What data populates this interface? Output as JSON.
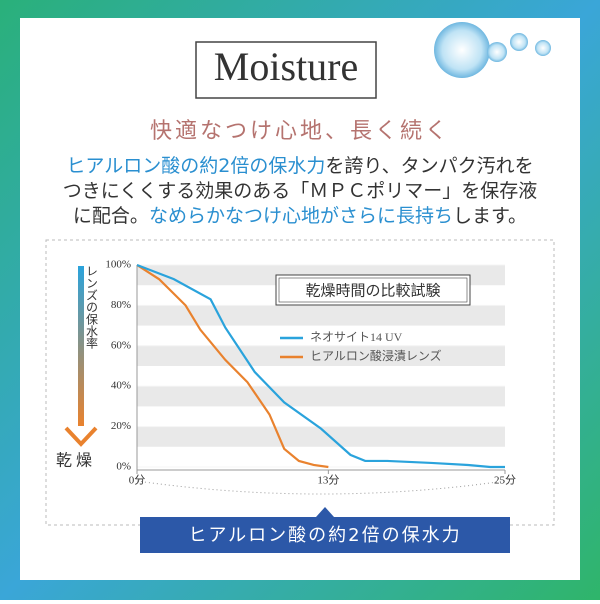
{
  "header": {
    "title": "Moisture",
    "subtitle": "快適なつけ心地、長く続く",
    "paragraph": [
      [
        "ヒアルロン酸の約2倍の保水力",
        "を誇り、タンパク汚れを"
      ],
      [
        "つきにくくする効果のある「ＭＰＣポリマー」を保存液"
      ],
      [
        "に配合。",
        "なめらかなつけ心地がさらに長持ち",
        "します。"
      ]
    ]
  },
  "chart_data": {
    "type": "line",
    "title": "乾燥時間の比較試験",
    "y_label": "レンズの保水率",
    "y_end_label": "乾燥",
    "xlim": [
      0,
      25
    ],
    "ylim": [
      0,
      100
    ],
    "xticks": [
      {
        "value": 0,
        "label": "0分"
      },
      {
        "value": 13,
        "label": "13分"
      },
      {
        "value": 25,
        "label": "25分"
      }
    ],
    "yticks": [
      {
        "value": 0,
        "label": "0%"
      },
      {
        "value": 20,
        "label": "20%"
      },
      {
        "value": 40,
        "label": "40%"
      },
      {
        "value": 60,
        "label": "60%"
      },
      {
        "value": 80,
        "label": "80%"
      },
      {
        "value": 100,
        "label": "100%"
      }
    ],
    "series": [
      {
        "name": "ネオサイト14 UV",
        "color": "#2aa3dc",
        "x": [
          0,
          2.5,
          5,
          6,
          8,
          10,
          12.5,
          14.5,
          15.5,
          17,
          20,
          22.5,
          24,
          25
        ],
        "values": [
          100,
          93,
          83,
          69,
          47,
          32,
          19,
          6,
          3,
          3,
          2,
          1,
          0,
          0
        ]
      },
      {
        "name": "ヒアルロン酸浸漬レンズ",
        "color": "#e9822e",
        "x": [
          0,
          1.5,
          3.3,
          4.3,
          6,
          7.5,
          9,
          10,
          11,
          12,
          13
        ],
        "values": [
          100,
          93,
          80,
          68,
          53,
          42,
          26,
          9,
          3,
          1,
          0
        ]
      }
    ]
  },
  "caption": "ヒアルロン酸の約2倍の保水力"
}
